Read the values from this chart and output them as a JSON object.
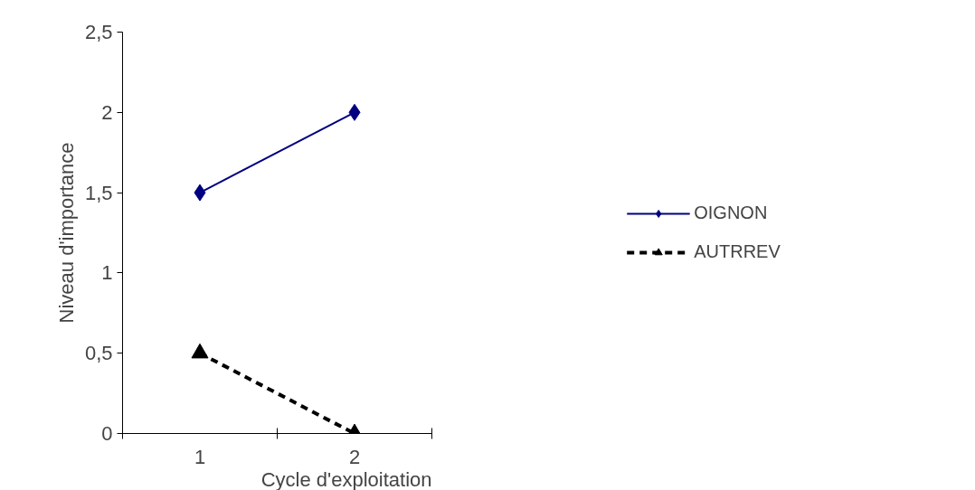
{
  "chart_data": {
    "type": "line",
    "xlabel": "Cycle d'exploitation",
    "ylabel": "Niveau d'importance",
    "categories": [
      "1",
      "2"
    ],
    "series": [
      {
        "name": "OIGNON",
        "color": "#000080",
        "values": [
          1.5,
          2
        ],
        "marker": "diamond",
        "line_style": "solid"
      },
      {
        "name": "AUTRREV",
        "color": "#000000",
        "values": [
          0.5,
          0
        ],
        "marker": "triangle",
        "line_style": "dashed"
      }
    ],
    "ylim": [
      0,
      2.5
    ],
    "yticks": [
      0,
      {
        "value": 0.5,
        "label": "0,5"
      },
      1,
      {
        "value": 1.5,
        "label": "1,5"
      },
      2,
      {
        "value": 2.5,
        "label": "2,5"
      }
    ],
    "grid": false,
    "legend": "right"
  }
}
